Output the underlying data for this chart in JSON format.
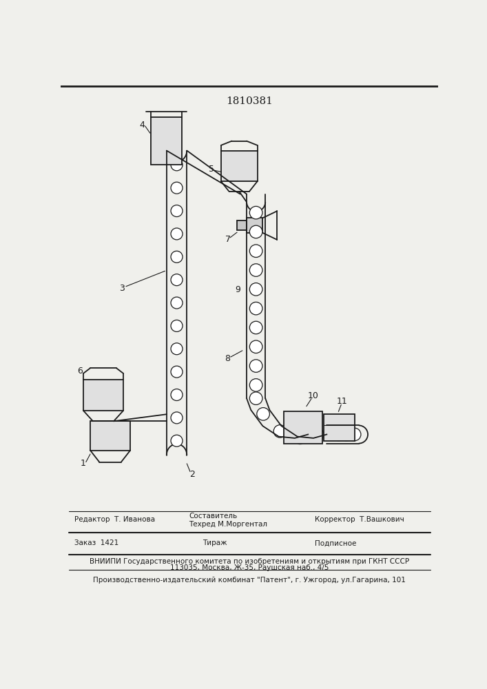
{
  "patent_number": "1810381",
  "background_color": "#f0f0ec",
  "line_color": "#1a1a1a",
  "title_fontsize": 11,
  "footer_fontsize": 7.5,
  "vniip_line": "ВНИИПИ Государственного комитета по изобретениям и открытиям при ГКНТ СССР",
  "address_line": "113035, Москва, Ж-35, Раушская наб., 4/5",
  "publisher_line": "Производственно-издательский комбинат \"Патент\", г. Ужгород, ул.Гагарина, 101"
}
